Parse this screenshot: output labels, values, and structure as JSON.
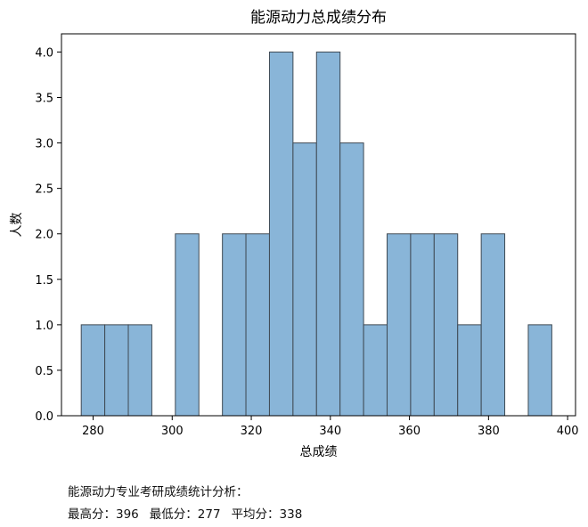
{
  "chart_data": {
    "type": "bar",
    "title": "能源动力总成绩分布",
    "xlabel": "总成绩",
    "ylabel": "人数",
    "xlim": [
      272,
      402
    ],
    "ylim": [
      0,
      4.2
    ],
    "xticks": [
      280,
      300,
      320,
      340,
      360,
      380,
      400
    ],
    "yticks": [
      0.0,
      0.5,
      1.0,
      1.5,
      2.0,
      2.5,
      3.0,
      3.5,
      4.0
    ],
    "bins": [
      {
        "x0": 277.0,
        "x1": 282.95,
        "count": 1
      },
      {
        "x0": 282.95,
        "x1": 288.9,
        "count": 1
      },
      {
        "x0": 288.9,
        "x1": 294.85,
        "count": 1
      },
      {
        "x0": 294.85,
        "x1": 300.8,
        "count": 0
      },
      {
        "x0": 300.8,
        "x1": 306.75,
        "count": 2
      },
      {
        "x0": 306.75,
        "x1": 312.7,
        "count": 0
      },
      {
        "x0": 312.7,
        "x1": 318.65,
        "count": 2
      },
      {
        "x0": 318.65,
        "x1": 324.6,
        "count": 2
      },
      {
        "x0": 324.6,
        "x1": 330.55,
        "count": 4
      },
      {
        "x0": 330.55,
        "x1": 336.5,
        "count": 3
      },
      {
        "x0": 336.5,
        "x1": 342.45,
        "count": 4
      },
      {
        "x0": 342.45,
        "x1": 348.4,
        "count": 3
      },
      {
        "x0": 348.4,
        "x1": 354.35,
        "count": 1
      },
      {
        "x0": 354.35,
        "x1": 360.3,
        "count": 2
      },
      {
        "x0": 360.3,
        "x1": 366.25,
        "count": 2
      },
      {
        "x0": 366.25,
        "x1": 372.2,
        "count": 2
      },
      {
        "x0": 372.2,
        "x1": 378.15,
        "count": 1
      },
      {
        "x0": 378.15,
        "x1": 384.1,
        "count": 2
      },
      {
        "x0": 384.1,
        "x1": 390.05,
        "count": 0
      },
      {
        "x0": 390.05,
        "x1": 396.0,
        "count": 1
      }
    ],
    "bar_color": "#89b5d8",
    "edge_color": "#3f4a54",
    "grid": false,
    "legend": "none"
  },
  "summary": {
    "heading": "能源动力专业考研成绩统计分析：",
    "max_label": "最高分：396",
    "min_label": "最低分：277",
    "avg_label": "平均分：338"
  }
}
